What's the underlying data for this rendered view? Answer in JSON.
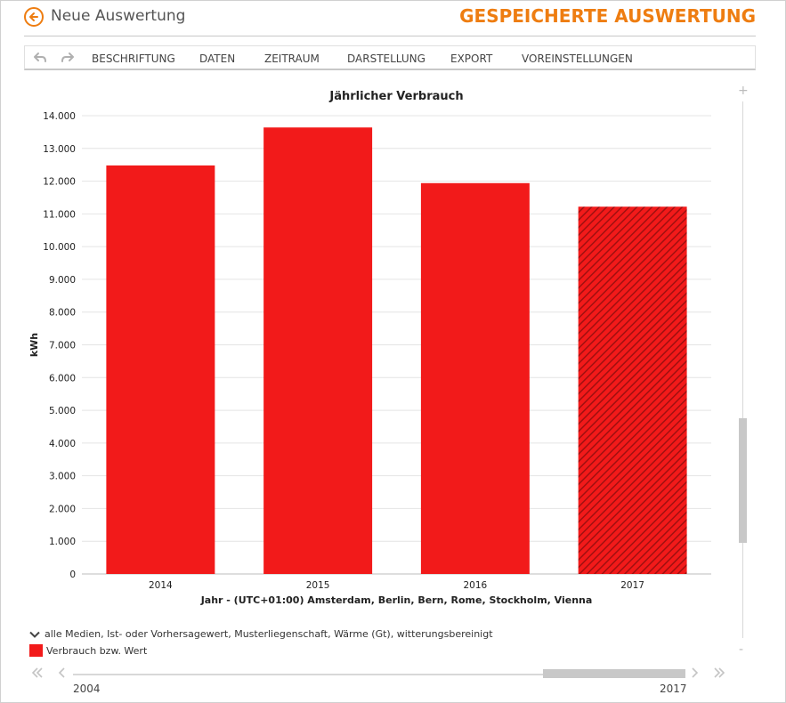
{
  "header": {
    "back_icon": "arrow-left-circle-icon",
    "title": "Neue Auswertung",
    "saved_title": "GESPEICHERTE AUSWERTUNG",
    "accent_color": "#ee7d11"
  },
  "toolbar": {
    "undo_icon": "undo-icon",
    "redo_icon": "redo-icon",
    "items": [
      {
        "label": "BESCHRIFTUNG"
      },
      {
        "label": "DATEN"
      },
      {
        "label": "ZEITRAUM"
      },
      {
        "label": "DARSTELLUNG"
      },
      {
        "label": "EXPORT"
      },
      {
        "label": "VOREINSTELLUNGEN"
      }
    ]
  },
  "chart_data": {
    "type": "bar",
    "title": "Jährlicher Verbrauch",
    "ylabel": "kWh",
    "xlabel": "Jahr - (UTC+01:00) Amsterdam, Berlin, Bern, Rome, Stockholm, Vienna",
    "categories": [
      "2014",
      "2015",
      "2016",
      "2017"
    ],
    "values": [
      12480,
      13640,
      11940,
      11220
    ],
    "forecast": [
      false,
      false,
      false,
      true
    ],
    "ylim": [
      0,
      14000
    ],
    "yticks": [
      0,
      1000,
      2000,
      3000,
      4000,
      5000,
      6000,
      7000,
      8000,
      9000,
      10000,
      11000,
      12000,
      13000,
      14000
    ],
    "ytick_labels": [
      "0",
      "1.000",
      "2.000",
      "3.000",
      "4.000",
      "5.000",
      "6.000",
      "7.000",
      "8.000",
      "9.000",
      "10.000",
      "11.000",
      "12.000",
      "13.000",
      "14.000"
    ],
    "grid": true,
    "bar_color": "#f21a1a",
    "forecast_stripe_color": "#a01010",
    "series": [
      {
        "name": "Verbrauch bzw. Wert"
      }
    ]
  },
  "legend": {
    "info_text": "alle Medien, Ist- oder Vorhersagewert, Musterliegenschaft, Wärme (Gt), witterungsbereinigt",
    "series_label": "Verbrauch bzw. Wert"
  },
  "vscroll": {
    "plus": "+",
    "minus": "-"
  },
  "range": {
    "start": "2004",
    "end": "2017"
  }
}
